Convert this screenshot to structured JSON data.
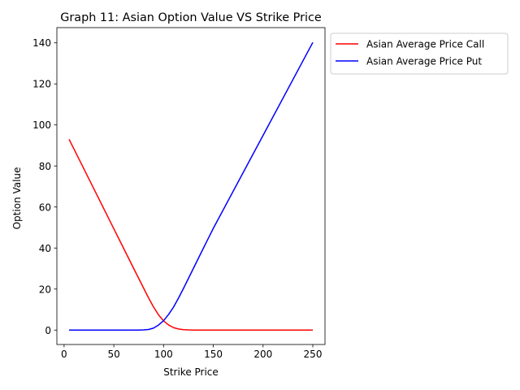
{
  "chart_data": {
    "type": "line",
    "title": "Graph 11: Asian Option Value VS Strike Price",
    "xlabel": "Strike Price",
    "ylabel": "Option Value",
    "xlim": [
      -7.25,
      262.25
    ],
    "ylim": [
      -7.02,
      147.42
    ],
    "xticks": [
      0,
      50,
      100,
      150,
      200,
      250
    ],
    "yticks": [
      0,
      20,
      40,
      60,
      80,
      100,
      120,
      140
    ],
    "grid": false,
    "legend_position": "outside-upper-right",
    "series": [
      {
        "name": "Asian Average Price Call",
        "color": "#ff0000",
        "x": [
          5,
          10,
          20,
          30,
          40,
          50,
          60,
          70,
          75,
          80,
          85,
          90,
          95,
          100,
          105,
          110,
          115,
          120,
          125,
          130,
          140,
          150,
          200,
          250
        ],
        "values": [
          93,
          88.2,
          78.5,
          68.8,
          59.1,
          49.4,
          39.7,
          30.0,
          25.2,
          20.4,
          15.6,
          11.2,
          7.4,
          4.5,
          2.5,
          1.2,
          0.55,
          0.22,
          0.09,
          0.03,
          0.01,
          0,
          0,
          0
        ]
      },
      {
        "name": "Asian Average Price Put",
        "color": "#0000ff",
        "x": [
          5,
          50,
          70,
          75,
          80,
          85,
          90,
          95,
          100,
          105,
          110,
          115,
          120,
          125,
          130,
          140,
          150,
          200,
          250
        ],
        "values": [
          0,
          0,
          0,
          0.02,
          0.1,
          0.3,
          1.0,
          2.5,
          4.6,
          7.6,
          11.2,
          15.6,
          20.3,
          25.2,
          30.1,
          39.9,
          49.6,
          94.9,
          140.2
        ]
      }
    ]
  }
}
